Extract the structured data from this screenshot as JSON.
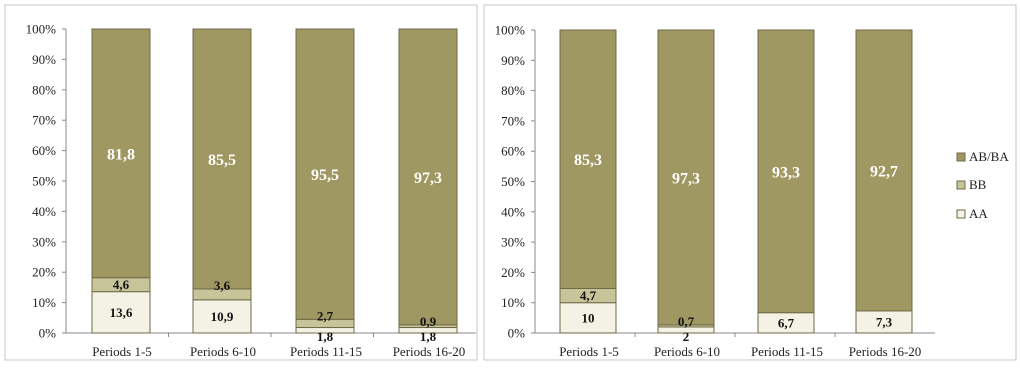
{
  "chart_data": [
    {
      "type": "bar",
      "stacked": true,
      "percent_stacked": true,
      "categories": [
        "Periods 1-5",
        "Periods 6-10",
        "Periods 11-15",
        "Periods 16-20"
      ],
      "ylim": [
        0,
        100
      ],
      "y_ticks": [
        "0%",
        "10%",
        "20%",
        "30%",
        "40%",
        "50%",
        "60%",
        "70%",
        "80%",
        "90%",
        "100%"
      ],
      "series": [
        {
          "name": "AA",
          "values": [
            13.6,
            10.9,
            1.8,
            1.8
          ],
          "labels": [
            "13,6",
            "10,9",
            "1,8",
            "1,8"
          ]
        },
        {
          "name": "BB",
          "values": [
            4.6,
            3.6,
            2.7,
            0.9
          ],
          "labels": [
            "4,6",
            "3,6",
            "2,7",
            "0,9"
          ]
        },
        {
          "name": "AB/BA",
          "values": [
            81.8,
            85.5,
            95.5,
            97.3
          ],
          "labels": [
            "81,8",
            "85,5",
            "95,5",
            "97,3"
          ]
        }
      ],
      "grid": false,
      "legend": "none"
    },
    {
      "type": "bar",
      "stacked": true,
      "percent_stacked": true,
      "categories": [
        "Periods 1-5",
        "Periods 6-10",
        "Periods 11-15",
        "Periods 16-20"
      ],
      "ylim": [
        0,
        100
      ],
      "y_ticks": [
        "0%",
        "10%",
        "20%",
        "30%",
        "40%",
        "50%",
        "60%",
        "70%",
        "80%",
        "90%",
        "100%"
      ],
      "series": [
        {
          "name": "AA",
          "values": [
            10,
            2,
            6.7,
            7.3
          ],
          "labels": [
            "10",
            "2",
            "6,7",
            "7,3"
          ]
        },
        {
          "name": "BB",
          "values": [
            4.7,
            0.7,
            0,
            0
          ],
          "labels": [
            "4,7",
            "0,7",
            "",
            ""
          ]
        },
        {
          "name": "AB/BA",
          "values": [
            85.3,
            97.3,
            93.3,
            92.7
          ],
          "labels": [
            "85,3",
            "97,3",
            "93,3",
            "92,7"
          ]
        }
      ],
      "grid": false,
      "legend": "right"
    }
  ],
  "legend": {
    "items": [
      {
        "name": "AB/BA",
        "color": "#a09862"
      },
      {
        "name": "BB",
        "color": "#c8c49a"
      },
      {
        "name": "AA",
        "color": "#f4f2e4"
      }
    ]
  },
  "colors": {
    "AA": "#f4f2e4",
    "BB": "#c8c49a",
    "AB/BA": "#a09862",
    "bar_border": "#6e6a48",
    "frame": "#c7c7c7",
    "axis": "#8a8a8a"
  }
}
